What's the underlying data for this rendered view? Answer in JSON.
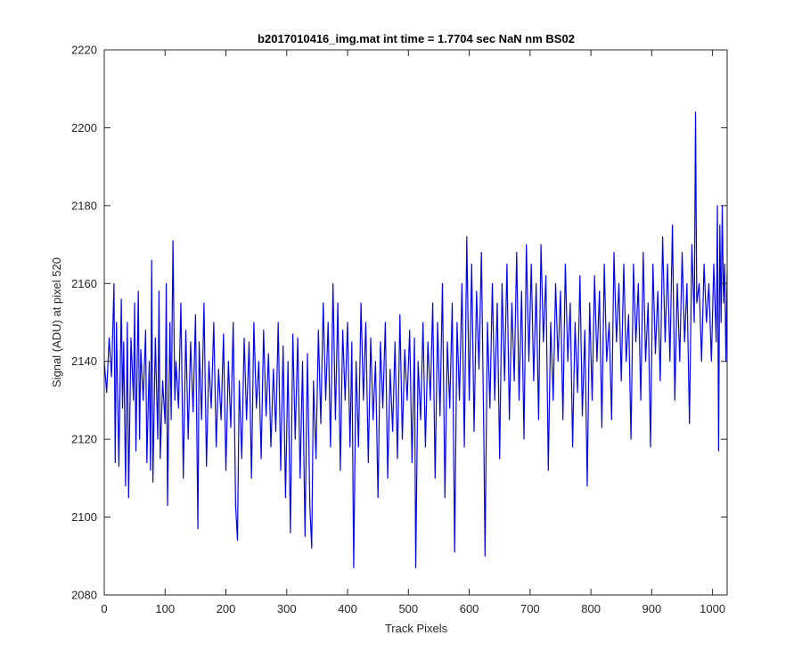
{
  "chart_data": {
    "type": "line",
    "title": "b2017010416_img.mat int time = 1.7704 sec  NaN nm BS02",
    "xlabel": "Track Pixels",
    "ylabel": "Signal (ADU) at pixel 520",
    "xlim": [
      0,
      1024
    ],
    "ylim": [
      2080,
      2220
    ],
    "xticks": [
      0,
      100,
      200,
      300,
      400,
      500,
      600,
      700,
      800,
      900,
      1000
    ],
    "yticks": [
      2080,
      2100,
      2120,
      2140,
      2160,
      2180,
      2200,
      2220
    ],
    "grid": false,
    "legend": "none",
    "series": [
      {
        "color": "#0000ff",
        "points": [
          [
            0,
            2140
          ],
          [
            4,
            2132
          ],
          [
            8,
            2146
          ],
          [
            12,
            2136
          ],
          [
            16,
            2160
          ],
          [
            18,
            2114
          ],
          [
            20,
            2150
          ],
          [
            24,
            2113
          ],
          [
            28,
            2156
          ],
          [
            30,
            2128
          ],
          [
            32,
            2145
          ],
          [
            35,
            2108
          ],
          [
            38,
            2150
          ],
          [
            40,
            2105
          ],
          [
            44,
            2146
          ],
          [
            48,
            2130
          ],
          [
            50,
            2155
          ],
          [
            52,
            2117
          ],
          [
            56,
            2158
          ],
          [
            58,
            2120
          ],
          [
            60,
            2143
          ],
          [
            64,
            2130
          ],
          [
            68,
            2148
          ],
          [
            70,
            2114
          ],
          [
            74,
            2140
          ],
          [
            76,
            2112
          ],
          [
            78,
            2166
          ],
          [
            80,
            2109
          ],
          [
            84,
            2146
          ],
          [
            88,
            2120
          ],
          [
            90,
            2158
          ],
          [
            92,
            2115
          ],
          [
            96,
            2135
          ],
          [
            100,
            2124
          ],
          [
            102,
            2160
          ],
          [
            104,
            2103
          ],
          [
            108,
            2150
          ],
          [
            110,
            2125
          ],
          [
            113,
            2171
          ],
          [
            116,
            2130
          ],
          [
            118,
            2140
          ],
          [
            122,
            2128
          ],
          [
            126,
            2155
          ],
          [
            130,
            2110
          ],
          [
            134,
            2148
          ],
          [
            138,
            2120
          ],
          [
            142,
            2145
          ],
          [
            146,
            2127
          ],
          [
            150,
            2152
          ],
          [
            154,
            2097
          ],
          [
            156,
            2145
          ],
          [
            160,
            2125
          ],
          [
            164,
            2155
          ],
          [
            168,
            2113
          ],
          [
            172,
            2140
          ],
          [
            176,
            2128
          ],
          [
            180,
            2150
          ],
          [
            184,
            2118
          ],
          [
            188,
            2138
          ],
          [
            192,
            2125
          ],
          [
            196,
            2147
          ],
          [
            200,
            2112
          ],
          [
            204,
            2140
          ],
          [
            208,
            2123
          ],
          [
            212,
            2150
          ],
          [
            216,
            2103
          ],
          [
            219,
            2094
          ],
          [
            222,
            2135
          ],
          [
            226,
            2115
          ],
          [
            230,
            2146
          ],
          [
            234,
            2125
          ],
          [
            238,
            2145
          ],
          [
            242,
            2110
          ],
          [
            246,
            2150
          ],
          [
            250,
            2128
          ],
          [
            254,
            2140
          ],
          [
            258,
            2115
          ],
          [
            262,
            2148
          ],
          [
            266,
            2126
          ],
          [
            270,
            2142
          ],
          [
            274,
            2118
          ],
          [
            278,
            2138
          ],
          [
            282,
            2122
          ],
          [
            286,
            2150
          ],
          [
            290,
            2112
          ],
          [
            294,
            2144
          ],
          [
            298,
            2105
          ],
          [
            302,
            2140
          ],
          [
            306,
            2096
          ],
          [
            310,
            2147
          ],
          [
            314,
            2120
          ],
          [
            318,
            2146
          ],
          [
            322,
            2110
          ],
          [
            326,
            2140
          ],
          [
            330,
            2095
          ],
          [
            334,
            2142
          ],
          [
            338,
            2103
          ],
          [
            341,
            2092
          ],
          [
            344,
            2135
          ],
          [
            348,
            2115
          ],
          [
            352,
            2148
          ],
          [
            356,
            2124
          ],
          [
            360,
            2155
          ],
          [
            364,
            2130
          ],
          [
            368,
            2150
          ],
          [
            372,
            2118
          ],
          [
            376,
            2160
          ],
          [
            380,
            2125
          ],
          [
            384,
            2155
          ],
          [
            388,
            2112
          ],
          [
            392,
            2148
          ],
          [
            396,
            2130
          ],
          [
            400,
            2150
          ],
          [
            404,
            2118
          ],
          [
            407,
            2145
          ],
          [
            410,
            2087
          ],
          [
            414,
            2140
          ],
          [
            418,
            2118
          ],
          [
            422,
            2155
          ],
          [
            426,
            2130
          ],
          [
            430,
            2150
          ],
          [
            434,
            2114
          ],
          [
            438,
            2146
          ],
          [
            442,
            2125
          ],
          [
            446,
            2140
          ],
          [
            450,
            2105
          ],
          [
            454,
            2145
          ],
          [
            458,
            2128
          ],
          [
            462,
            2150
          ],
          [
            466,
            2110
          ],
          [
            470,
            2138
          ],
          [
            474,
            2122
          ],
          [
            478,
            2145
          ],
          [
            482,
            2115
          ],
          [
            486,
            2152
          ],
          [
            490,
            2120
          ],
          [
            494,
            2143
          ],
          [
            498,
            2130
          ],
          [
            502,
            2148
          ],
          [
            506,
            2114
          ],
          [
            510,
            2146
          ],
          [
            512,
            2087
          ],
          [
            516,
            2140
          ],
          [
            520,
            2125
          ],
          [
            524,
            2150
          ],
          [
            528,
            2118
          ],
          [
            532,
            2145
          ],
          [
            536,
            2130
          ],
          [
            540,
            2155
          ],
          [
            544,
            2110
          ],
          [
            548,
            2150
          ],
          [
            552,
            2126
          ],
          [
            556,
            2160
          ],
          [
            560,
            2105
          ],
          [
            564,
            2145
          ],
          [
            568,
            2128
          ],
          [
            572,
            2155
          ],
          [
            576,
            2091
          ],
          [
            580,
            2150
          ],
          [
            584,
            2130
          ],
          [
            588,
            2160
          ],
          [
            592,
            2118
          ],
          [
            596,
            2172
          ],
          [
            600,
            2130
          ],
          [
            604,
            2165
          ],
          [
            608,
            2122
          ],
          [
            612,
            2158
          ],
          [
            616,
            2138
          ],
          [
            620,
            2168
          ],
          [
            624,
            2120
          ],
          [
            626,
            2090
          ],
          [
            630,
            2150
          ],
          [
            634,
            2128
          ],
          [
            638,
            2160
          ],
          [
            642,
            2130
          ],
          [
            646,
            2155
          ],
          [
            650,
            2115
          ],
          [
            654,
            2160
          ],
          [
            658,
            2135
          ],
          [
            662,
            2165
          ],
          [
            666,
            2125
          ],
          [
            670,
            2155
          ],
          [
            674,
            2135
          ],
          [
            678,
            2168
          ],
          [
            682,
            2130
          ],
          [
            686,
            2158
          ],
          [
            690,
            2120
          ],
          [
            694,
            2170
          ],
          [
            698,
            2140
          ],
          [
            702,
            2165
          ],
          [
            706,
            2135
          ],
          [
            710,
            2160
          ],
          [
            714,
            2125
          ],
          [
            718,
            2170
          ],
          [
            722,
            2145
          ],
          [
            726,
            2162
          ],
          [
            730,
            2112
          ],
          [
            734,
            2150
          ],
          [
            738,
            2130
          ],
          [
            742,
            2160
          ],
          [
            746,
            2140
          ],
          [
            750,
            2158
          ],
          [
            754,
            2125
          ],
          [
            758,
            2165
          ],
          [
            762,
            2140
          ],
          [
            766,
            2155
          ],
          [
            770,
            2118
          ],
          [
            774,
            2150
          ],
          [
            778,
            2132
          ],
          [
            782,
            2162
          ],
          [
            786,
            2126
          ],
          [
            790,
            2148
          ],
          [
            794,
            2108
          ],
          [
            798,
            2155
          ],
          [
            802,
            2130
          ],
          [
            806,
            2162
          ],
          [
            810,
            2140
          ],
          [
            814,
            2158
          ],
          [
            818,
            2123
          ],
          [
            822,
            2165
          ],
          [
            826,
            2140
          ],
          [
            830,
            2150
          ],
          [
            834,
            2125
          ],
          [
            838,
            2168
          ],
          [
            842,
            2145
          ],
          [
            846,
            2160
          ],
          [
            850,
            2135
          ],
          [
            854,
            2165
          ],
          [
            858,
            2140
          ],
          [
            862,
            2152
          ],
          [
            866,
            2120
          ],
          [
            870,
            2165
          ],
          [
            874,
            2145
          ],
          [
            878,
            2160
          ],
          [
            882,
            2130
          ],
          [
            886,
            2168
          ],
          [
            890,
            2140
          ],
          [
            894,
            2155
          ],
          [
            898,
            2118
          ],
          [
            902,
            2165
          ],
          [
            906,
            2142
          ],
          [
            910,
            2158
          ],
          [
            914,
            2135
          ],
          [
            918,
            2172
          ],
          [
            922,
            2145
          ],
          [
            926,
            2165
          ],
          [
            930,
            2140
          ],
          [
            934,
            2175
          ],
          [
            938,
            2130
          ],
          [
            942,
            2160
          ],
          [
            946,
            2140
          ],
          [
            950,
            2168
          ],
          [
            954,
            2145
          ],
          [
            958,
            2160
          ],
          [
            962,
            2124
          ],
          [
            966,
            2170
          ],
          [
            970,
            2150
          ],
          [
            972,
            2204
          ],
          [
            974,
            2155
          ],
          [
            978,
            2160
          ],
          [
            982,
            2140
          ],
          [
            986,
            2165
          ],
          [
            990,
            2150
          ],
          [
            994,
            2160
          ],
          [
            998,
            2140
          ],
          [
            1002,
            2165
          ],
          [
            1006,
            2145
          ],
          [
            1008,
            2180
          ],
          [
            1010,
            2117
          ],
          [
            1012,
            2175
          ],
          [
            1014,
            2150
          ],
          [
            1016,
            2180
          ],
          [
            1018,
            2155
          ],
          [
            1020,
            2165
          ],
          [
            1022,
            2140
          ],
          [
            1024,
            2163
          ]
        ]
      }
    ]
  }
}
